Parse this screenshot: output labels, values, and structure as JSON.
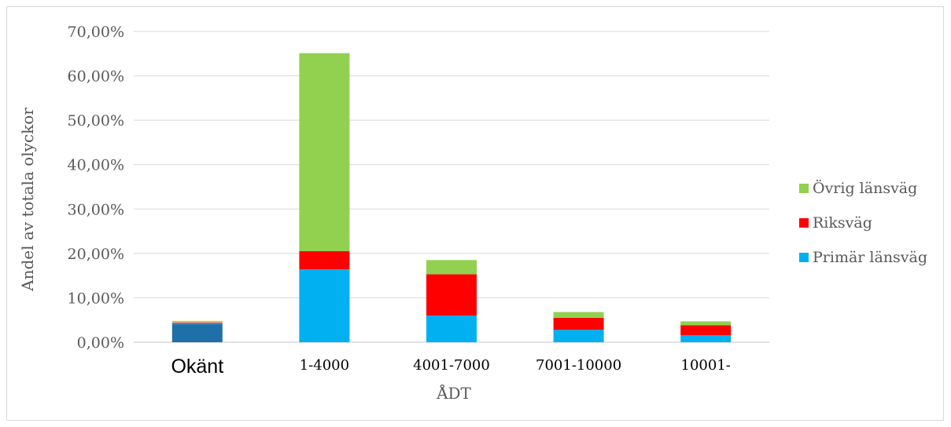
{
  "chart_data": {
    "type": "bar",
    "stacked": true,
    "categories": [
      "Okänt",
      "1-4000",
      "4001-7000",
      "7001-10000",
      "10001-"
    ],
    "series": [
      {
        "name": "Primär länsväg",
        "color": "#00b0f0",
        "values": [
          0,
          16.4,
          6.0,
          2.8,
          1.6
        ]
      },
      {
        "name": "Riksväg",
        "color": "#ff0000",
        "values": [
          0,
          4.1,
          9.3,
          2.7,
          2.2
        ]
      },
      {
        "name": "Övrig länsväg",
        "color": "#92d050",
        "values": [
          0,
          44.6,
          3.2,
          1.3,
          0.9
        ]
      }
    ],
    "unlabeled_bar": {
      "category": "Okänt",
      "segments": [
        {
          "color": "#1f6fa8",
          "value": 4.0
        },
        {
          "color": "#2e75b6",
          "value": 0.25
        },
        {
          "color": "#ed7d31",
          "value": 0.2
        },
        {
          "color": "#a5a5a5",
          "value": 0.15
        },
        {
          "color": "#ffc000",
          "value": 0.2
        }
      ]
    },
    "y_ticks": [
      "0,00%",
      "10,00%",
      "20,00%",
      "30,00%",
      "40,00%",
      "50,00%",
      "60,00%",
      "70,00%"
    ],
    "ylim": [
      0,
      70
    ],
    "xlabel": "ÅDT",
    "ylabel": "Andel av totala olyckor",
    "legend_position": "right",
    "legend_order": [
      "Övrig länsväg",
      "Riksväg",
      "Primär länsväg"
    ],
    "grid": true,
    "colors": {
      "grid": "#d9d9d9",
      "axis": "#d9d9d9",
      "text": "#595959"
    }
  }
}
